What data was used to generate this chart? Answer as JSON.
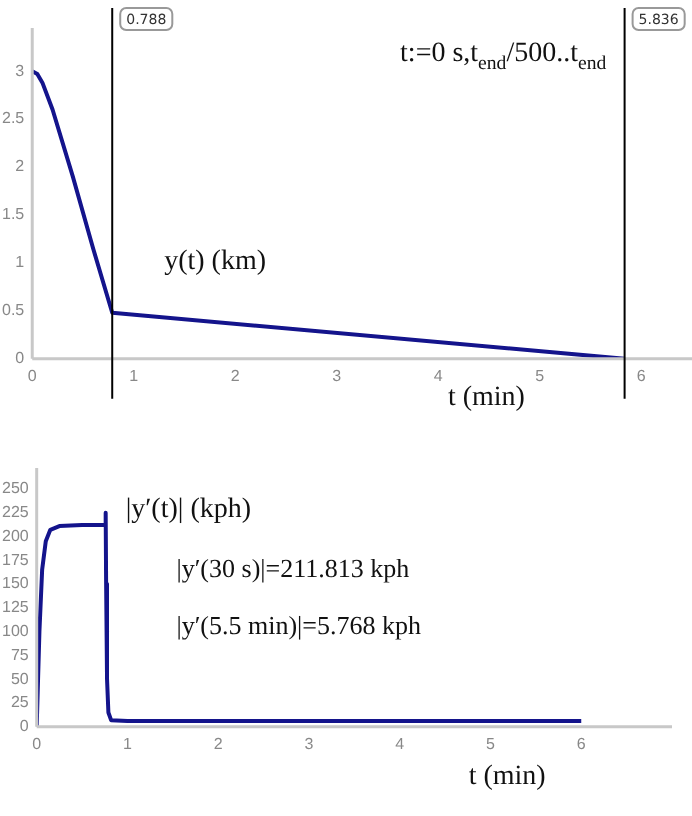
{
  "chart_data": [
    {
      "type": "line",
      "xlabel": "t (min)",
      "ylabel": "y(t) (km)",
      "annotations": [
        "t:=0 s,t$_{end}$/500..t$_{end}$"
      ],
      "x": [
        0,
        0.05,
        0.1,
        0.2,
        0.4,
        0.6,
        0.788,
        5.836
      ],
      "series": [
        {
          "color": "#14148c",
          "values": [
            3,
            2.97,
            2.88,
            2.6,
            1.9,
            1.15,
            0.48,
            0
          ]
        }
      ],
      "xlim": [
        0,
        6.5
      ],
      "ylim": [
        0,
        3.45
      ],
      "xticks": [
        0,
        1,
        2,
        3,
        4,
        5,
        6
      ],
      "yticks": [
        0,
        0.5,
        1,
        1.5,
        2,
        2.5,
        3
      ],
      "ref_lines": [
        {
          "axis": "x",
          "value": 0.788,
          "label": "0.788",
          "color": "#000000"
        },
        {
          "axis": "x",
          "value": 5.836,
          "label": "5.836",
          "color": "#000000"
        }
      ],
      "grid": false,
      "legend": false,
      "marker": "none",
      "line_style": "solid"
    },
    {
      "type": "line",
      "xlabel": "t (min)",
      "ylabel": "|y′(t)| (kph)",
      "annotations": [
        "|y′(30 s)|=211.813 kph",
        "|y′(5.5 min)|=5.768 kph"
      ],
      "x": [
        0,
        0.03,
        0.06,
        0.1,
        0.15,
        0.25,
        0.5,
        0.755,
        0.76,
        0.765,
        0.775,
        0.79,
        0.82,
        1,
        3,
        6
      ],
      "series": [
        {
          "color": "#14148c",
          "values": [
            0,
            100,
            165,
            195,
            207,
            211,
            212,
            212,
            225,
            150,
            50,
            15,
            7,
            6,
            6,
            6
          ]
        }
      ],
      "xlim": [
        0,
        7
      ],
      "ylim": [
        0,
        272
      ],
      "xticks": [
        0,
        1,
        2,
        3,
        4,
        5,
        6
      ],
      "yticks": [
        0,
        25,
        50,
        75,
        100,
        125,
        150,
        175,
        200,
        225,
        250
      ],
      "grid": false,
      "legend": false,
      "marker": "none",
      "line_style": "solid"
    }
  ]
}
